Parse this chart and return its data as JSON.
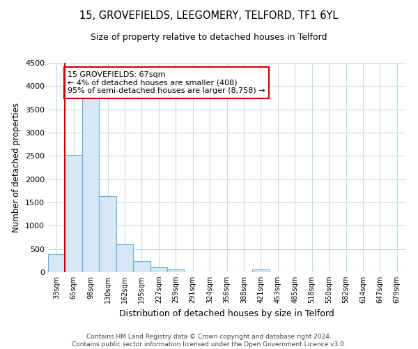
{
  "title": "15, GROVEFIELDS, LEEGOMERY, TELFORD, TF1 6YL",
  "subtitle": "Size of property relative to detached houses in Telford",
  "xlabel": "Distribution of detached houses by size in Telford",
  "ylabel": "Number of detached properties",
  "bar_labels": [
    "33sqm",
    "65sqm",
    "98sqm",
    "130sqm",
    "162sqm",
    "195sqm",
    "227sqm",
    "259sqm",
    "291sqm",
    "324sqm",
    "356sqm",
    "388sqm",
    "421sqm",
    "453sqm",
    "485sqm",
    "518sqm",
    "550sqm",
    "582sqm",
    "614sqm",
    "647sqm",
    "679sqm"
  ],
  "bar_values": [
    390,
    2520,
    3730,
    1640,
    600,
    245,
    100,
    65,
    0,
    0,
    0,
    0,
    60,
    0,
    0,
    0,
    0,
    0,
    0,
    0,
    0
  ],
  "bar_fill_color": "#d6e8f5",
  "bar_edge_color": "#6aafd4",
  "vline_x": 0.5,
  "vline_color": "#cc0000",
  "annotation_line1": "15 GROVEFIELDS: 67sqm",
  "annotation_line2": "← 4% of detached houses are smaller (408)",
  "annotation_line3": "95% of semi-detached houses are larger (8,758) →",
  "annotation_box_color": "#ffffff",
  "annotation_box_edge": "#cc0000",
  "ylim": [
    0,
    4500
  ],
  "yticks": [
    0,
    500,
    1000,
    1500,
    2000,
    2500,
    3000,
    3500,
    4000,
    4500
  ],
  "footer_line1": "Contains HM Land Registry data © Crown copyright and database right 2024.",
  "footer_line2": "Contains public sector information licensed under the Open Government Licence v3.0.",
  "bg_color": "#ffffff",
  "grid_color": "#c8daea"
}
